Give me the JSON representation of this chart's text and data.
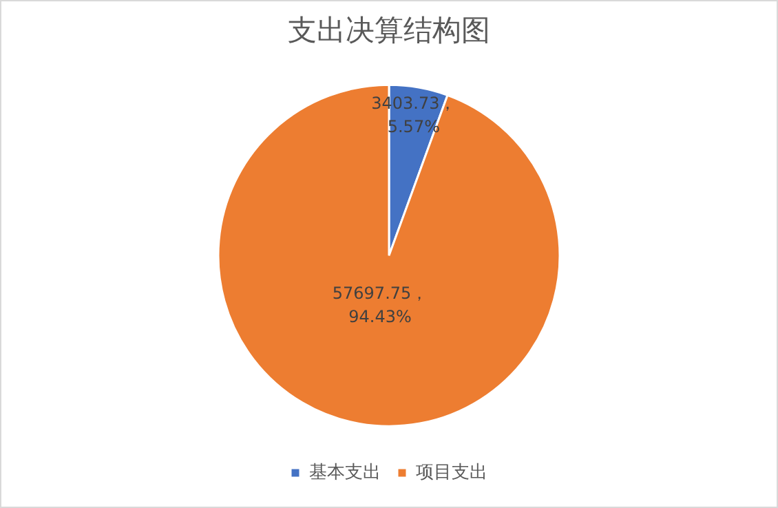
{
  "chart_data": {
    "type": "pie",
    "title": "支出决算结构图",
    "categories": [
      "基本支出",
      "项目支出"
    ],
    "values": [
      3403.73,
      57697.75
    ],
    "colors": [
      "#4472c4",
      "#ed7d31"
    ],
    "value_labels": [
      "3403.73，\n5.57%",
      "57697.75，\n94.43%"
    ],
    "legend": "bottom"
  }
}
